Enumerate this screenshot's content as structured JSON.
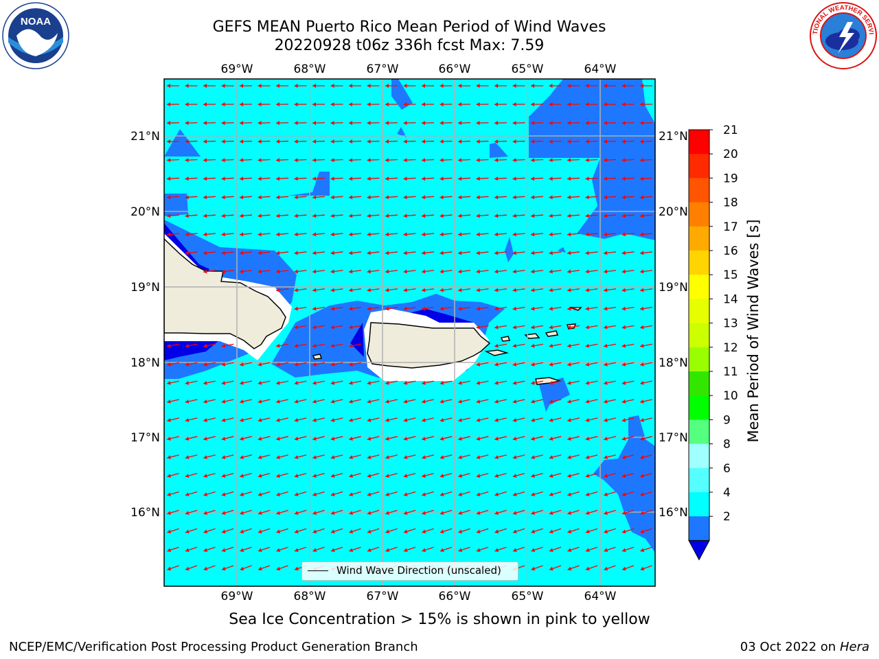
{
  "title": {
    "line1": "GEFS MEAN Puerto Rico Mean Period of Wind Waves",
    "line2": "20220928 t06z 336h fcst   Max: 7.59"
  },
  "map": {
    "lon_ticks": [
      "69°W",
      "68°W",
      "67°W",
      "66°W",
      "65°W",
      "64°W"
    ],
    "lat_ticks": [
      "21°N",
      "20°N",
      "19°N",
      "18°N",
      "17°N",
      "16°N"
    ],
    "legend": "Wind Wave Direction (unscaled)",
    "arrow_direction": "from east (westward arrows)",
    "colors": {
      "ocean_fill": "#00ffff",
      "period_2_4": "#1e78ff",
      "period_below_2": "#0000e6",
      "land": "#efecdc",
      "arrow": "#ff0000",
      "grid": "#b0b0b0"
    }
  },
  "colorbar": {
    "label": "Mean Period of Wind Waves [s]",
    "ticks": [
      "21",
      "20",
      "19",
      "18",
      "17",
      "16",
      "15",
      "14",
      "13",
      "12",
      "11",
      "10",
      "9",
      "8",
      "6",
      "4",
      "2"
    ],
    "colors": [
      "#ff0000",
      "#ff2a00",
      "#ff5500",
      "#ff8000",
      "#ffaa00",
      "#ffd400",
      "#ffff00",
      "#e6ff00",
      "#ccff00",
      "#99ff00",
      "#33e600",
      "#00ff00",
      "#55ff80",
      "#a0ffff",
      "#55ffff",
      "#00ffff",
      "#1e78ff"
    ],
    "under_color": "#0000e6"
  },
  "caption": "Sea Ice Concentration > 15% is shown in pink to yellow",
  "footer": {
    "left": "NCEP/EMC/Verification Post Processing Product Generation Branch",
    "right_date": "03 Oct 2022 on ",
    "right_host": "Hera"
  },
  "logos": {
    "left": "NOAA",
    "right": "NATIONAL WEATHER SERVICE"
  }
}
